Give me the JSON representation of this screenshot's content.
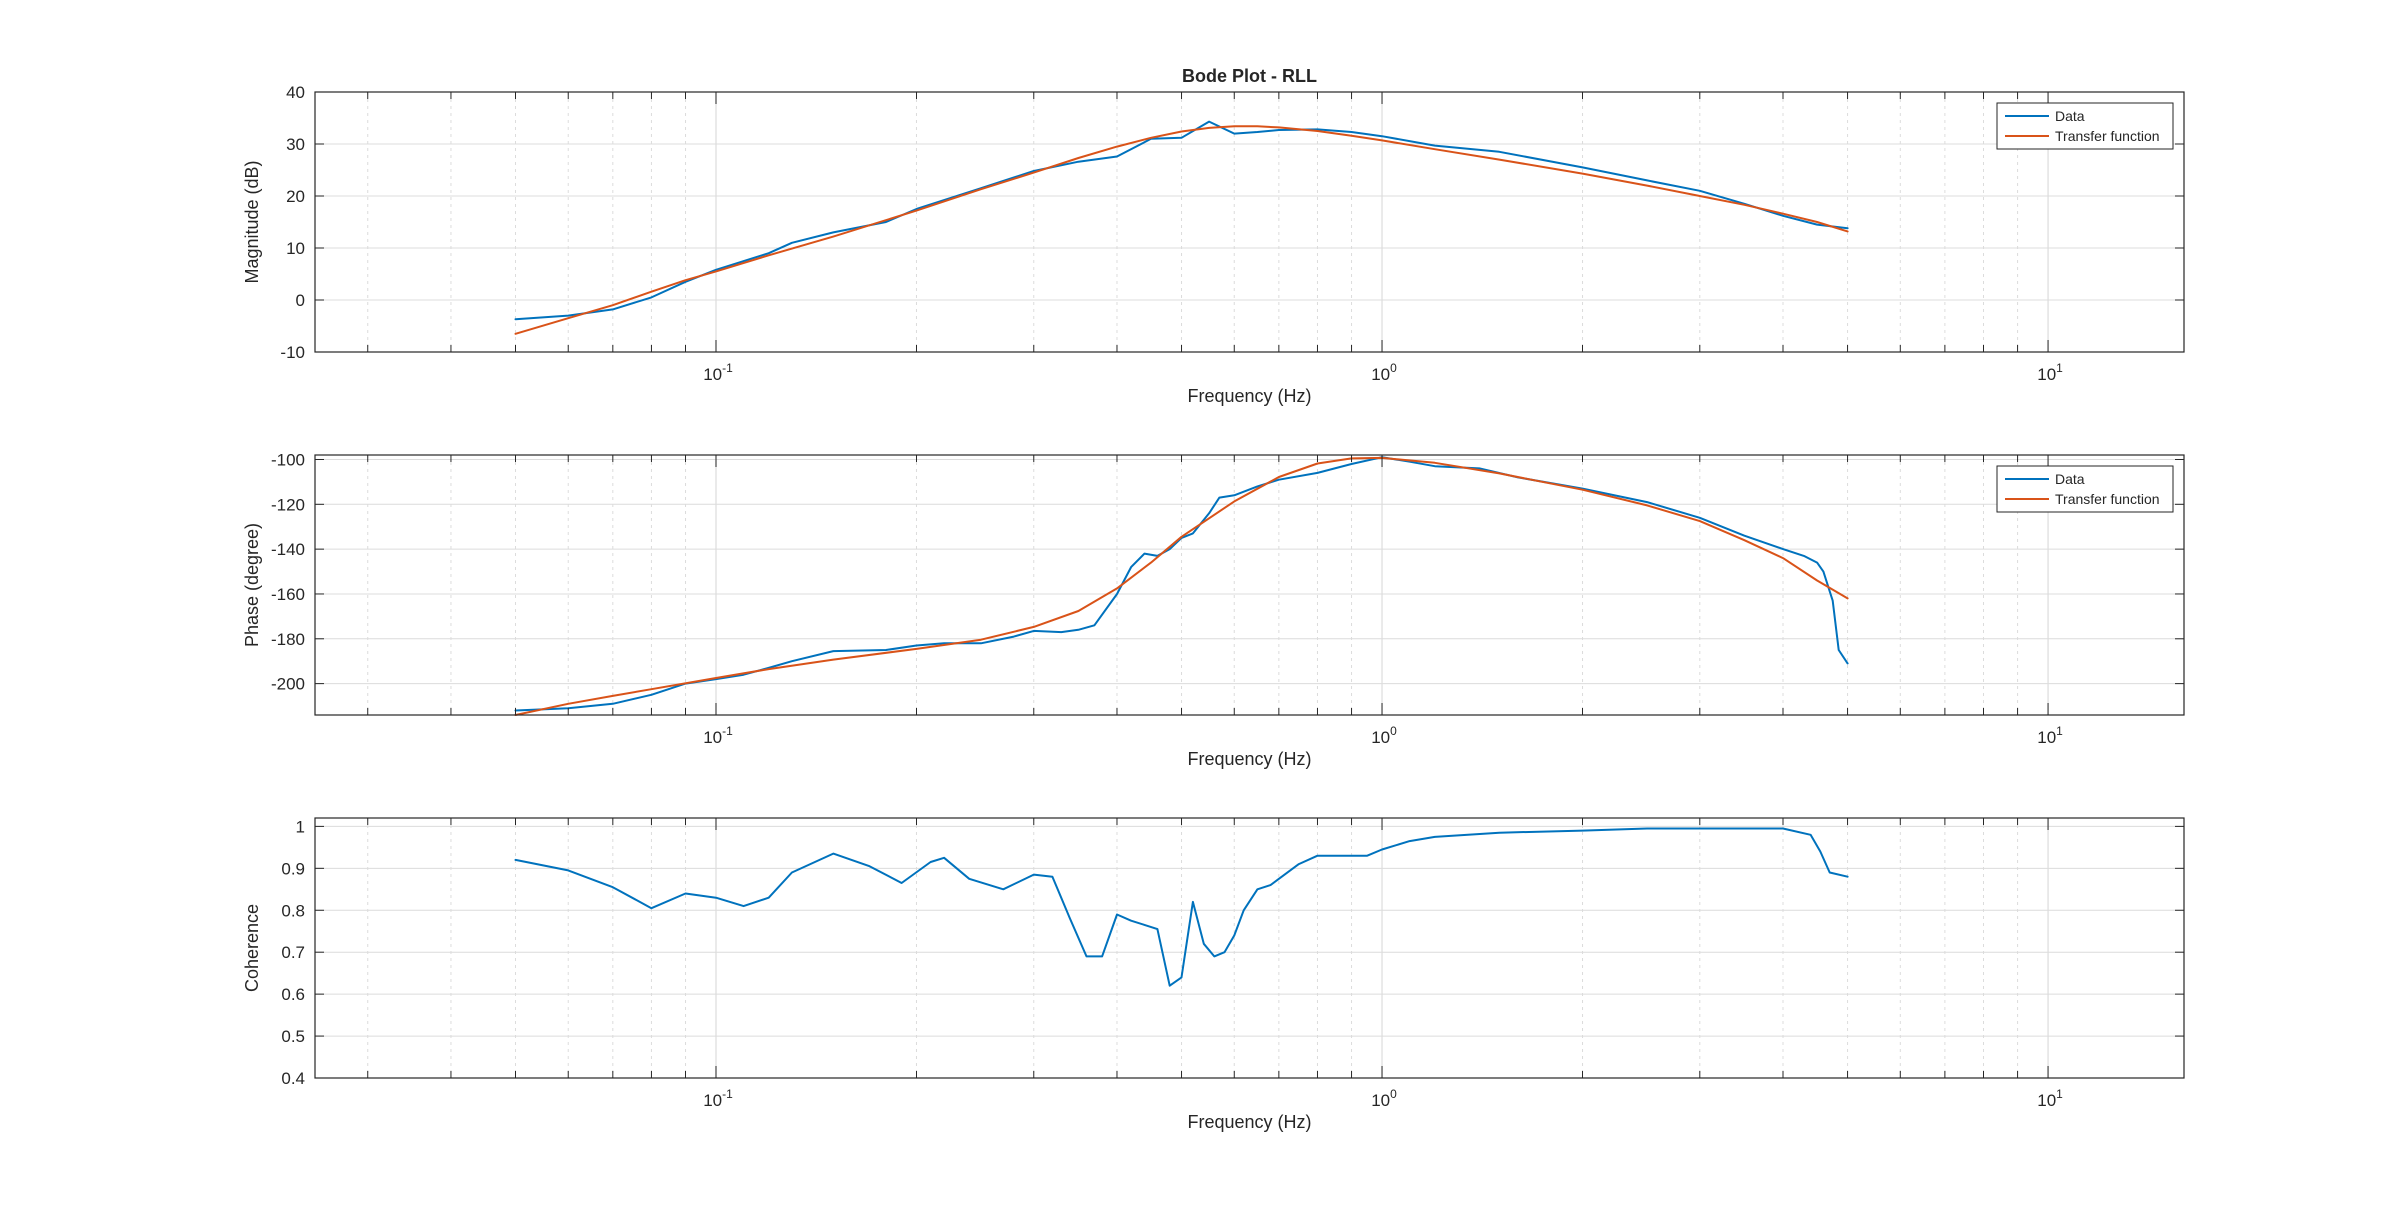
{
  "figure": {
    "background": "#ffffff",
    "axis_color": "#262626",
    "grid_color": "#dcdcdc"
  },
  "chart_data": [
    {
      "type": "line",
      "title": "Bode Plot - RLL",
      "xlabel": "Frequency (Hz)",
      "ylabel": "Magnitude (dB)",
      "xscale": "log",
      "xlim": [
        0.025,
        16
      ],
      "ylim": [
        -10,
        40
      ],
      "yticks": [
        -10,
        0,
        10,
        20,
        30,
        40
      ],
      "xtick_labels": [
        {
          "x": 0.1,
          "base": "10",
          "exp": "-1"
        },
        {
          "x": 1,
          "base": "10",
          "exp": "0"
        },
        {
          "x": 10,
          "base": "10",
          "exp": "1"
        }
      ],
      "grid": true,
      "legend": {
        "placement": "top-right",
        "entries": [
          "Data",
          "Transfer function"
        ]
      },
      "series": [
        {
          "name": "Data",
          "color": "#0072BD",
          "x": [
            0.05,
            0.06,
            0.07,
            0.08,
            0.09,
            0.1,
            0.12,
            0.13,
            0.15,
            0.18,
            0.2,
            0.25,
            0.3,
            0.35,
            0.4,
            0.45,
            0.5,
            0.55,
            0.6,
            0.65,
            0.7,
            0.8,
            0.9,
            1.0,
            1.2,
            1.5,
            2.0,
            2.5,
            3.0,
            3.5,
            4.0,
            4.5,
            5.0
          ],
          "y": [
            -3.7,
            -3.0,
            -1.8,
            0.5,
            3.5,
            5.8,
            9.0,
            11.0,
            13.0,
            15.0,
            17.5,
            21.5,
            24.8,
            26.6,
            27.6,
            31.0,
            31.2,
            34.3,
            32.0,
            32.3,
            32.7,
            32.8,
            32.3,
            31.5,
            29.7,
            28.5,
            25.5,
            23.0,
            21.0,
            18.5,
            16.2,
            14.5,
            13.8
          ]
        },
        {
          "name": "Transfer function",
          "color": "#D95319",
          "x": [
            0.05,
            0.06,
            0.07,
            0.08,
            0.09,
            0.1,
            0.12,
            0.15,
            0.2,
            0.25,
            0.3,
            0.35,
            0.4,
            0.45,
            0.5,
            0.55,
            0.6,
            0.65,
            0.7,
            0.8,
            0.9,
            1.0,
            1.2,
            1.5,
            2.0,
            2.5,
            3.0,
            3.5,
            4.0,
            4.5,
            5.0
          ],
          "y": [
            -6.5,
            -3.5,
            -1.0,
            1.6,
            3.8,
            5.5,
            8.6,
            12.2,
            17.2,
            21.3,
            24.5,
            27.3,
            29.5,
            31.2,
            32.4,
            33.1,
            33.4,
            33.4,
            33.2,
            32.5,
            31.6,
            30.7,
            29.0,
            27.0,
            24.3,
            22.0,
            20.0,
            18.3,
            16.6,
            15.0,
            13.2
          ]
        }
      ]
    },
    {
      "type": "line",
      "title": "",
      "xlabel": "Frequency (Hz)",
      "ylabel": "Phase (degree)",
      "xscale": "log",
      "xlim": [
        0.025,
        16
      ],
      "ylim": [
        -214,
        -98
      ],
      "yticks": [
        -200,
        -180,
        -160,
        -140,
        -120,
        -100
      ],
      "xtick_labels": [
        {
          "x": 0.1,
          "base": "10",
          "exp": "-1"
        },
        {
          "x": 1,
          "base": "10",
          "exp": "0"
        },
        {
          "x": 10,
          "base": "10",
          "exp": "1"
        }
      ],
      "grid": true,
      "legend": {
        "placement": "top-right",
        "entries": [
          "Data",
          "Transfer function"
        ]
      },
      "series": [
        {
          "name": "Data",
          "color": "#0072BD",
          "x": [
            0.05,
            0.06,
            0.07,
            0.08,
            0.09,
            0.1,
            0.11,
            0.12,
            0.13,
            0.15,
            0.18,
            0.2,
            0.22,
            0.25,
            0.28,
            0.3,
            0.33,
            0.35,
            0.37,
            0.4,
            0.42,
            0.44,
            0.46,
            0.48,
            0.5,
            0.52,
            0.55,
            0.57,
            0.6,
            0.65,
            0.7,
            0.8,
            0.9,
            1.0,
            1.1,
            1.2,
            1.4,
            1.6,
            2.0,
            2.5,
            3.0,
            3.5,
            4.0,
            4.3,
            4.5,
            4.6,
            4.75,
            4.85,
            5.0
          ],
          "y": [
            -212,
            -211,
            -209,
            -205,
            -200,
            -198,
            -196,
            -193,
            -190,
            -185.5,
            -185,
            -183,
            -182,
            -182,
            -179,
            -176.5,
            -177,
            -176,
            -174,
            -160,
            -148,
            -142,
            -143,
            -140,
            -135,
            -133,
            -124,
            -117,
            -116,
            -112,
            -109,
            -106,
            -102,
            -99,
            -101,
            -103,
            -104,
            -108,
            -113,
            -119,
            -126,
            -134,
            -140,
            -143,
            -146,
            -150,
            -163,
            -185,
            -191
          ]
        },
        {
          "name": "Transfer function",
          "color": "#D95319",
          "x": [
            0.05,
            0.06,
            0.07,
            0.08,
            0.1,
            0.12,
            0.15,
            0.2,
            0.25,
            0.3,
            0.35,
            0.4,
            0.45,
            0.5,
            0.6,
            0.7,
            0.8,
            0.9,
            1.0,
            1.2,
            1.5,
            2.0,
            2.5,
            3.0,
            3.5,
            4.0,
            4.5,
            5.0
          ],
          "y": [
            -214,
            -209,
            -205.5,
            -202.5,
            -197.5,
            -193.5,
            -189.3,
            -184.5,
            -180.4,
            -174.7,
            -167.6,
            -157.5,
            -146,
            -134.5,
            -118.7,
            -107.8,
            -101.8,
            -99.5,
            -99.3,
            -101.5,
            -106.2,
            -113.5,
            -120.5,
            -127.5,
            -136,
            -144,
            -154,
            -162
          ]
        }
      ]
    },
    {
      "type": "line",
      "title": "",
      "xlabel": "Frequency (Hz)",
      "ylabel": "Coherence",
      "xscale": "log",
      "xlim": [
        0.025,
        16
      ],
      "ylim": [
        0.4,
        1.02
      ],
      "yticks": [
        0.4,
        0.5,
        0.6,
        0.7,
        0.8,
        0.9,
        1
      ],
      "xtick_labels": [
        {
          "x": 0.1,
          "base": "10",
          "exp": "-1"
        },
        {
          "x": 1,
          "base": "10",
          "exp": "0"
        },
        {
          "x": 10,
          "base": "10",
          "exp": "1"
        }
      ],
      "grid": true,
      "legend": null,
      "series": [
        {
          "name": "",
          "color": "#0072BD",
          "x": [
            0.05,
            0.06,
            0.07,
            0.08,
            0.09,
            0.1,
            0.11,
            0.12,
            0.13,
            0.15,
            0.17,
            0.19,
            0.21,
            0.22,
            0.24,
            0.27,
            0.3,
            0.32,
            0.34,
            0.36,
            0.38,
            0.4,
            0.42,
            0.44,
            0.46,
            0.48,
            0.5,
            0.52,
            0.54,
            0.56,
            0.58,
            0.6,
            0.62,
            0.65,
            0.68,
            0.7,
            0.75,
            0.8,
            0.9,
            0.95,
            1.0,
            1.1,
            1.2,
            1.5,
            2.0,
            2.5,
            3.0,
            4.0,
            4.4,
            4.55,
            4.7,
            5.0
          ],
          "y": [
            0.92,
            0.895,
            0.855,
            0.805,
            0.84,
            0.83,
            0.81,
            0.83,
            0.89,
            0.935,
            0.905,
            0.865,
            0.915,
            0.925,
            0.875,
            0.85,
            0.885,
            0.88,
            0.78,
            0.69,
            0.69,
            0.79,
            0.775,
            0.765,
            0.755,
            0.62,
            0.64,
            0.82,
            0.72,
            0.69,
            0.7,
            0.74,
            0.8,
            0.85,
            0.86,
            0.875,
            0.91,
            0.93,
            0.93,
            0.93,
            0.945,
            0.965,
            0.975,
            0.985,
            0.99,
            0.995,
            0.995,
            0.995,
            0.98,
            0.94,
            0.89,
            0.88
          ]
        }
      ]
    }
  ]
}
